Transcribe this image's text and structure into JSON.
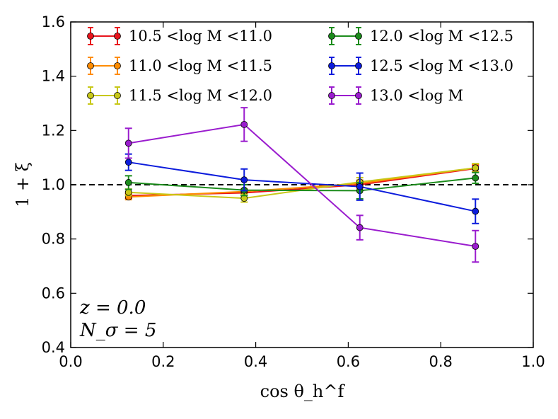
{
  "chart_data": {
    "type": "line",
    "xlabel": "cos θ_h^f",
    "ylabel": "1 + ξ",
    "xlim": [
      0.0,
      1.0
    ],
    "ylim": [
      0.4,
      1.6
    ],
    "xticks": [
      "0.0",
      "0.2",
      "0.4",
      "0.6",
      "0.8",
      "1.0"
    ],
    "yticks": [
      "0.4",
      "0.6",
      "0.8",
      "1.0",
      "1.2",
      "1.4",
      "1.6"
    ],
    "reference_line": {
      "y": 1.0,
      "style": "dashed",
      "color": "#000000"
    },
    "x": [
      0.125,
      0.375,
      0.625,
      0.875
    ],
    "series": [
      {
        "name": "10.5 <log M <11.0",
        "color": "#e8141c",
        "values": [
          0.96,
          0.97,
          1.0,
          1.06
        ],
        "errors": [
          0.01,
          0.01,
          0.012,
          0.012
        ]
      },
      {
        "name": "11.0 <log M <11.5",
        "color": "#ff8c00",
        "values": [
          0.955,
          0.975,
          1.005,
          1.062
        ],
        "errors": [
          0.01,
          0.01,
          0.012,
          0.014
        ]
      },
      {
        "name": "11.5 <log M <12.0",
        "color": "#c8c818",
        "values": [
          0.972,
          0.95,
          1.01,
          1.062
        ],
        "errors": [
          0.012,
          0.014,
          0.016,
          0.016
        ]
      },
      {
        "name": "12.0 <log M <12.5",
        "color": "#1c8c1c",
        "values": [
          1.008,
          0.98,
          0.978,
          1.025
        ],
        "errors": [
          0.025,
          0.02,
          0.03,
          0.02
        ]
      },
      {
        "name": "12.5 <log M <13.0",
        "color": "#0c1cdc",
        "values": [
          1.083,
          1.018,
          0.993,
          0.902
        ],
        "errors": [
          0.03,
          0.04,
          0.05,
          0.045
        ]
      },
      {
        "name": "13.0 <log M",
        "color": "#9a1cce",
        "values": [
          1.153,
          1.222,
          0.842,
          0.773
        ],
        "errors": [
          0.055,
          0.062,
          0.045,
          0.058
        ]
      }
    ],
    "legend": "top",
    "annotations": [
      "z = 0.0",
      "N_σ = 5"
    ]
  }
}
